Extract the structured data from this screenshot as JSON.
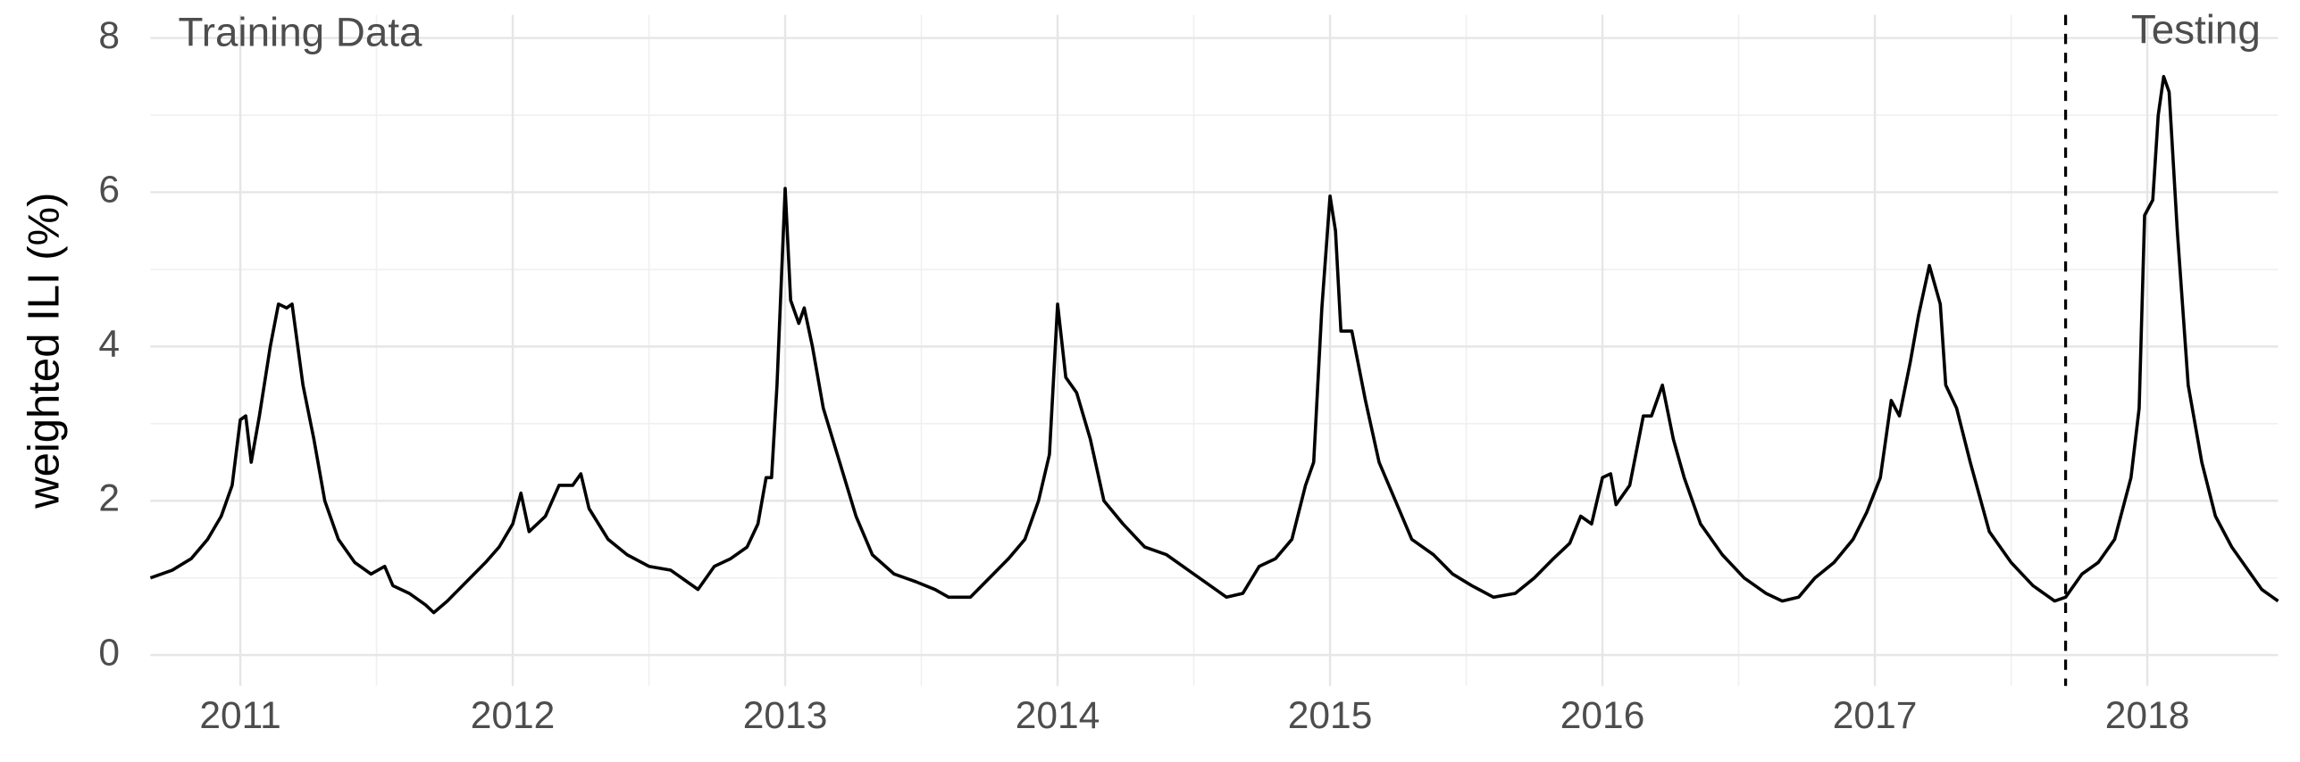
{
  "chart_data": {
    "type": "line",
    "ylabel": "weighted ILI (%)",
    "annotations": [
      "Training Data",
      "Testing"
    ],
    "split": 2017.7,
    "color": "#000000",
    "grid": true,
    "xlim": [
      2010.67,
      2018.48
    ],
    "ylim": [
      -0.4,
      8.3
    ],
    "xticks": [
      2011,
      2012,
      2013,
      2014,
      2015,
      2016,
      2017,
      2018
    ],
    "yticks": [
      0,
      2,
      4,
      6,
      8
    ],
    "x": [
      2010.67,
      2010.75,
      2010.82,
      2010.88,
      2010.93,
      2010.97,
      2011.0,
      2011.02,
      2011.04,
      2011.07,
      2011.11,
      2011.14,
      2011.17,
      2011.19,
      2011.23,
      2011.27,
      2011.31,
      2011.36,
      2011.42,
      2011.48,
      2011.53,
      2011.56,
      2011.62,
      2011.68,
      2011.71,
      2011.76,
      2011.83,
      2011.9,
      2011.95,
      2012.0,
      2012.03,
      2012.06,
      2012.12,
      2012.17,
      2012.22,
      2012.25,
      2012.28,
      2012.35,
      2012.42,
      2012.5,
      2012.58,
      2012.64,
      2012.68,
      2012.74,
      2012.8,
      2012.86,
      2012.9,
      2012.93,
      2012.95,
      2012.97,
      2013.0,
      2013.02,
      2013.05,
      2013.07,
      2013.1,
      2013.14,
      2013.2,
      2013.26,
      2013.32,
      2013.4,
      2013.48,
      2013.55,
      2013.6,
      2013.68,
      2013.75,
      2013.82,
      2013.88,
      2013.93,
      2013.97,
      2014.0,
      2014.03,
      2014.07,
      2014.12,
      2014.17,
      2014.24,
      2014.32,
      2014.4,
      2014.48,
      2014.56,
      2014.62,
      2014.68,
      2014.74,
      2014.8,
      2014.86,
      2014.91,
      2014.94,
      2014.97,
      2015.0,
      2015.02,
      2015.04,
      2015.08,
      2015.13,
      2015.18,
      2015.24,
      2015.3,
      2015.38,
      2015.45,
      2015.52,
      2015.6,
      2015.68,
      2015.75,
      2015.82,
      2015.88,
      2015.92,
      2015.96,
      2016.0,
      2016.03,
      2016.05,
      2016.1,
      2016.15,
      2016.18,
      2016.22,
      2016.26,
      2016.3,
      2016.36,
      2016.44,
      2016.52,
      2016.6,
      2016.66,
      2016.72,
      2016.78,
      2016.85,
      2016.92,
      2016.97,
      2017.02,
      2017.06,
      2017.09,
      2017.13,
      2017.16,
      2017.2,
      2017.24,
      2017.26,
      2017.3,
      2017.35,
      2017.42,
      2017.5,
      2017.58,
      2017.66,
      2017.7,
      2017.76,
      2017.82,
      2017.88,
      2017.94,
      2017.97,
      2017.99,
      2018.02,
      2018.04,
      2018.06,
      2018.08,
      2018.11,
      2018.15,
      2018.2,
      2018.25,
      2018.31,
      2018.37,
      2018.42,
      2018.46,
      2018.48
    ],
    "values": [
      1.0,
      1.1,
      1.25,
      1.5,
      1.8,
      2.2,
      3.05,
      3.1,
      2.5,
      3.1,
      4.0,
      4.55,
      4.5,
      4.55,
      3.5,
      2.8,
      2.0,
      1.5,
      1.2,
      1.05,
      1.15,
      0.9,
      0.8,
      0.65,
      0.55,
      0.7,
      0.95,
      1.2,
      1.4,
      1.7,
      2.1,
      1.6,
      1.8,
      2.2,
      2.2,
      2.35,
      1.9,
      1.5,
      1.3,
      1.15,
      1.1,
      0.95,
      0.85,
      1.15,
      1.25,
      1.4,
      1.7,
      2.3,
      2.3,
      3.5,
      6.05,
      4.6,
      4.3,
      4.5,
      4.0,
      3.2,
      2.5,
      1.8,
      1.3,
      1.05,
      0.95,
      0.85,
      0.75,
      0.75,
      1.0,
      1.25,
      1.5,
      2.0,
      2.6,
      4.55,
      3.6,
      3.4,
      2.8,
      2.0,
      1.7,
      1.4,
      1.3,
      1.1,
      0.9,
      0.75,
      0.8,
      1.15,
      1.25,
      1.5,
      2.2,
      2.5,
      4.5,
      5.95,
      5.5,
      4.2,
      4.2,
      3.3,
      2.5,
      2.0,
      1.5,
      1.3,
      1.05,
      0.9,
      0.75,
      0.8,
      1.0,
      1.25,
      1.45,
      1.8,
      1.7,
      2.3,
      2.35,
      1.95,
      2.2,
      3.1,
      3.1,
      3.5,
      2.8,
      2.3,
      1.7,
      1.3,
      1.0,
      0.8,
      0.7,
      0.75,
      1.0,
      1.2,
      1.5,
      1.85,
      2.3,
      3.3,
      3.1,
      3.8,
      4.4,
      5.05,
      4.55,
      3.5,
      3.2,
      2.5,
      1.6,
      1.2,
      0.9,
      0.7,
      0.75,
      1.05,
      1.2,
      1.5,
      2.3,
      3.2,
      5.7,
      5.9,
      7.0,
      7.5,
      7.3,
      5.5,
      3.5,
      2.5,
      1.8,
      1.4,
      1.1,
      0.85,
      0.75,
      0.7
    ]
  }
}
